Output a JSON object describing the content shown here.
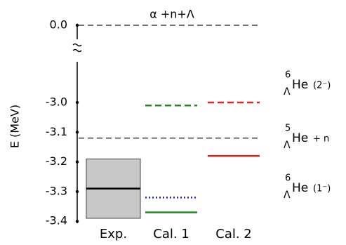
{
  "chart_data": {
    "type": "level",
    "y_label": "E (MeV)",
    "ylim": [
      -3.42,
      0.0
    ],
    "yticks": [
      {
        "value": 0,
        "label": "0.0"
      },
      {
        "value": -3,
        "label": "-3.0"
      },
      -3.1,
      -3.2,
      -3.3,
      -3.4
    ],
    "axis_break": true,
    "columns": [
      "Exp.",
      "Cal. 1",
      "Cal. 2"
    ],
    "thresholds": [
      {
        "value": 0,
        "label": "α +n+Λ"
      },
      {
        "value": -3.12,
        "mass": "5",
        "hyperon": "Λ",
        "nucleus": "He",
        "state": "+ n"
      }
    ],
    "levels": [
      {
        "column": 0,
        "value": -3.29,
        "band": [
          -3.19,
          -3.39
        ],
        "color": "#000000",
        "band_color": "#c8c8c8",
        "style": "solid"
      },
      {
        "column": 1,
        "value": -3.01,
        "color": "#1e8c1e",
        "style": "dashed"
      },
      {
        "column": 1,
        "value": -3.32,
        "color": "#2020c8",
        "style": "dotted"
      },
      {
        "column": 1,
        "value": -3.37,
        "color": "#1e8c1e",
        "style": "solid"
      },
      {
        "column": 2,
        "value": -3.0,
        "color": "#e02424",
        "style": "dashed"
      },
      {
        "column": 2,
        "value": -3.18,
        "color": "#e02424",
        "style": "solid"
      }
    ],
    "state_labels": [
      {
        "mass": "6",
        "hyperon": "Λ",
        "nucleus": "He",
        "state": "(2⁻)"
      },
      {
        "mass": "6",
        "hyperon": "Λ",
        "nucleus": "He",
        "state": "(1⁻)"
      }
    ]
  }
}
